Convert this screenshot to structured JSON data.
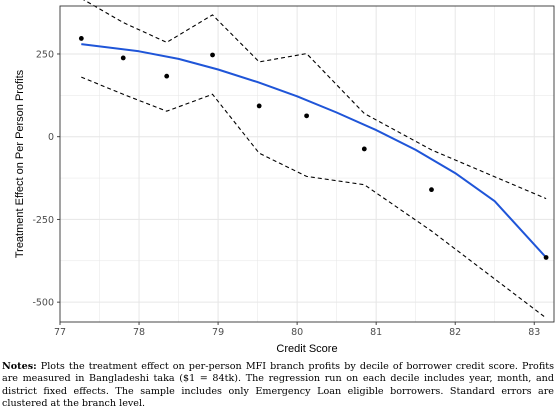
{
  "chart_data": {
    "type": "line",
    "xlabel": "Credit Score",
    "ylabel": "Treatment Effect on Per Person Profits",
    "xlim": [
      77.0,
      83.25
    ],
    "ylim": [
      -560,
      395
    ],
    "xticks": [
      "77",
      "78",
      "79",
      "80",
      "81",
      "82",
      "83"
    ],
    "yticks": [
      "250",
      "0",
      "-250",
      "-500"
    ],
    "grid": true,
    "points": {
      "x": [
        77.27,
        77.8,
        78.35,
        78.93,
        79.52,
        80.12,
        80.85,
        81.7,
        83.15
      ],
      "y": [
        297,
        238,
        183,
        247,
        93,
        63,
        -37,
        -160,
        -365
      ]
    },
    "fit": {
      "x": [
        77.27,
        78.0,
        78.5,
        79.0,
        79.5,
        80.0,
        80.5,
        81.0,
        81.5,
        82.0,
        82.5,
        83.15
      ],
      "y": [
        280,
        258,
        235,
        203,
        165,
        122,
        73,
        20,
        -40,
        -110,
        -195,
        -365
      ]
    },
    "ci_upper": {
      "x": [
        77.27,
        77.8,
        78.35,
        78.93,
        79.52,
        80.12,
        80.85,
        81.7,
        83.15
      ],
      "y": [
        418,
        345,
        285,
        368,
        226,
        251,
        70,
        -40,
        -187
      ]
    },
    "ci_lower": {
      "x": [
        77.27,
        77.8,
        78.35,
        78.93,
        79.52,
        80.12,
        80.85,
        81.7,
        83.15
      ],
      "y": [
        180,
        128,
        77,
        128,
        -50,
        -120,
        -145,
        -285,
        -548
      ]
    },
    "colors": {
      "fit": "#1f55d8",
      "points": "#000000",
      "ci": "#000000",
      "grid": "#e6e6e6",
      "panel_border": "#333333"
    }
  },
  "notes": {
    "label": "Notes:",
    "text": "Plots the treatment effect on per-person MFI branch profits by decile of borrower credit score. Profits are measured in Bangladeshi taka ($1 = 84tk). The regression run on each decile includes year, month, and district fixed effects. The sample includes only Emergency Loan eligible borrowers. Standard errors are clustered at the branch level."
  }
}
